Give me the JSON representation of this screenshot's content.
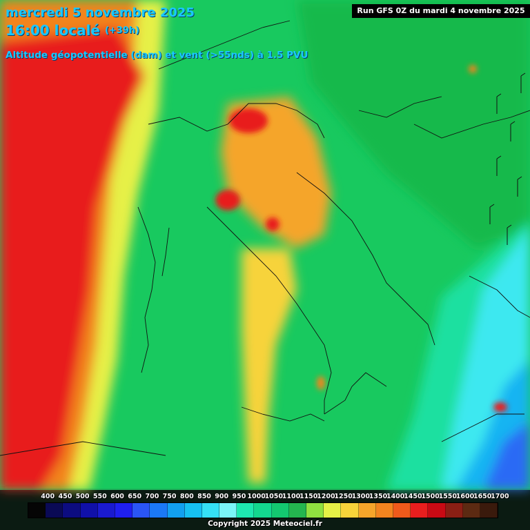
{
  "header": {
    "date": "mercredi 5 novembre 2025",
    "time": "16:00 localé",
    "lead": "(+39h)",
    "subtitle": "Altitude géopotentielle (dam) et vent (>55nds) à 1.5 PVU",
    "run": "Run GFS 0Z du mardi 4 novembre 2025"
  },
  "legend": {
    "ticks": [
      "400",
      "450",
      "500",
      "550",
      "600",
      "650",
      "700",
      "750",
      "800",
      "850",
      "900",
      "950",
      "1000",
      "1050",
      "1100",
      "1150",
      "1200",
      "1250",
      "1300",
      "1350",
      "1400",
      "1450",
      "1500",
      "1550",
      "1600",
      "1650",
      "1700"
    ],
    "colors": [
      "#050505",
      "#0a0a55",
      "#0c0c80",
      "#1010a8",
      "#1a1acf",
      "#1f1ff0",
      "#2a55f5",
      "#1b78f5",
      "#12a0f0",
      "#16c0f2",
      "#35e0f5",
      "#7af5f7",
      "#1ee8b0",
      "#13d88f",
      "#13c870",
      "#24b64f",
      "#90e040",
      "#e6f046",
      "#f7d33a",
      "#f5a52a",
      "#f2841f",
      "#ef5a1b",
      "#e81e1e",
      "#c80a14",
      "#8a1f14",
      "#5c2a12",
      "#3a1a0c"
    ],
    "copyright": "Copyright 2025 Meteociel.fr"
  }
}
